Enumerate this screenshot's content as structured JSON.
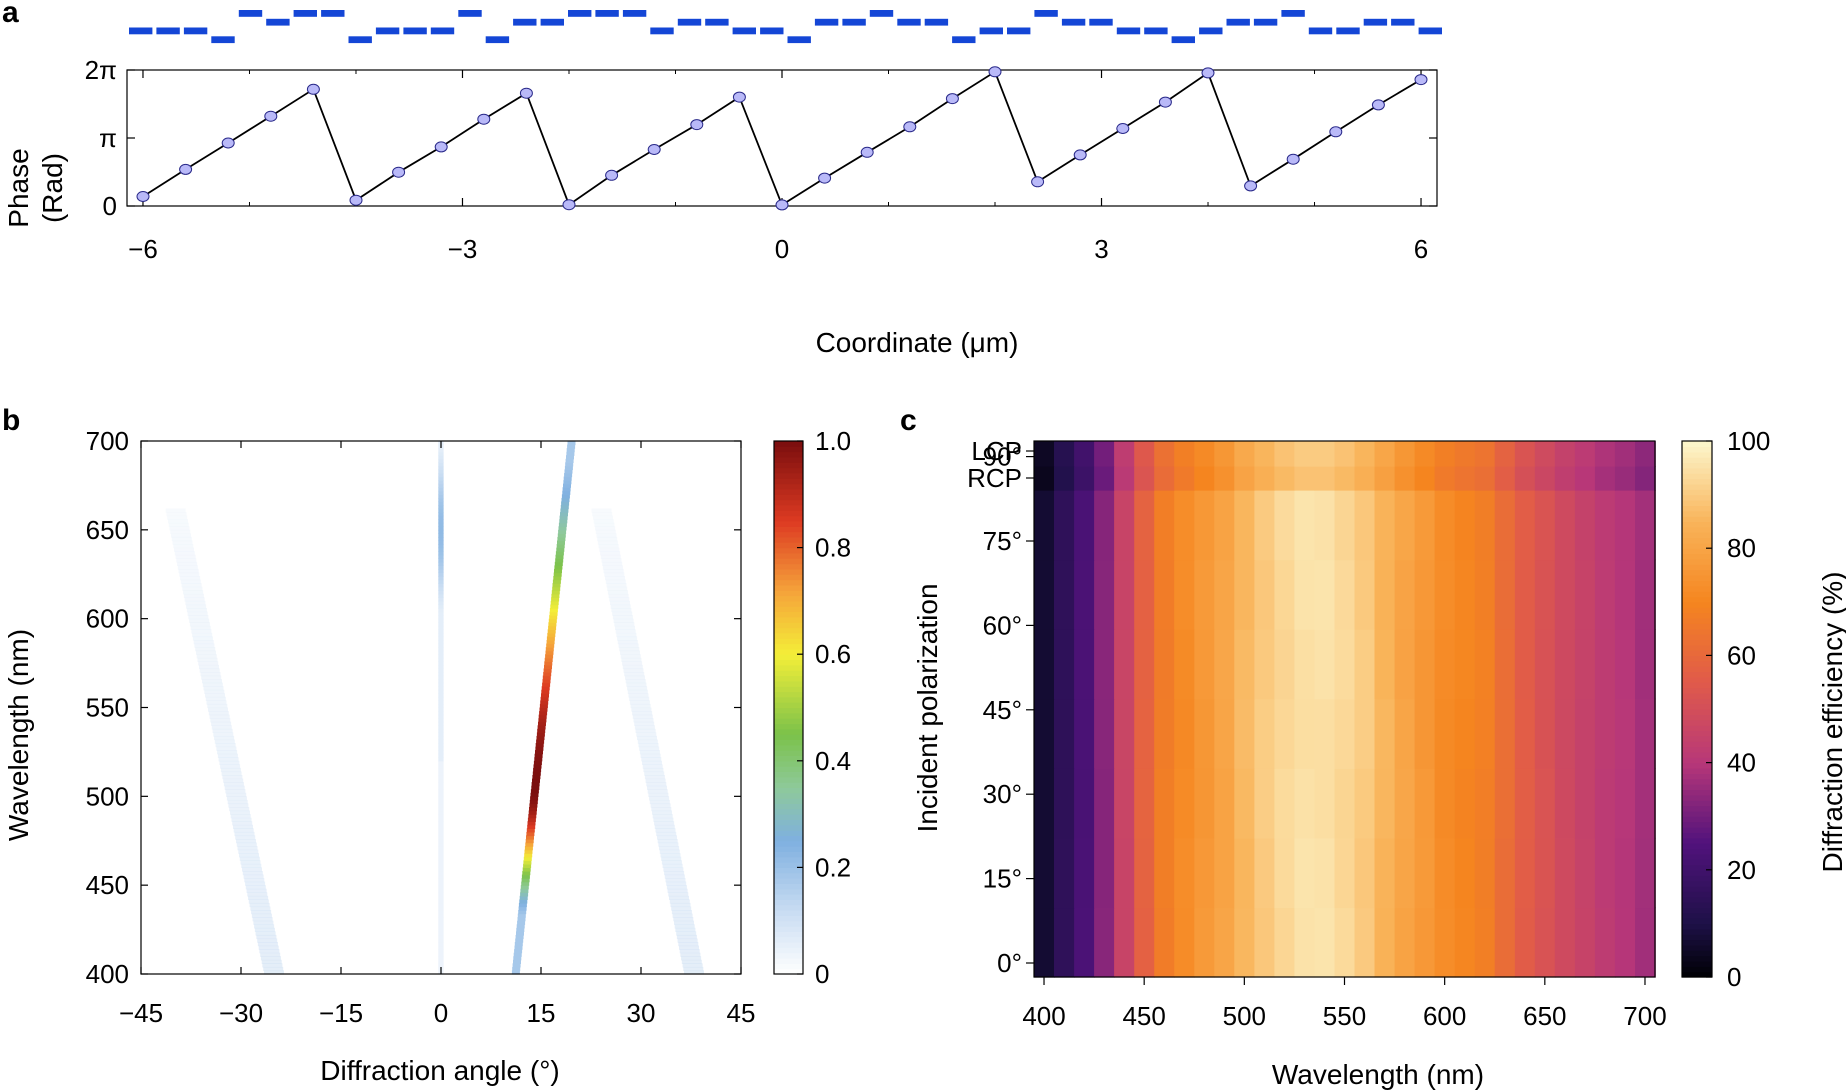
{
  "colors": {
    "metasurface": "#1446d6",
    "point_fill": "#b9b9f8",
    "point_stroke": "#2a2a8a",
    "line": "#000000"
  },
  "chart_data": [
    {
      "panel": "a",
      "type": "line",
      "title": "",
      "xlabel": "Coordinate (μm)",
      "ylabel_lines": [
        "Phase",
        "(Rad)"
      ],
      "xlim": [
        -6.15,
        6.15
      ],
      "ylim": [
        0,
        6.2832
      ],
      "x_ticks": [
        {
          "v": -6,
          "label": "−6"
        },
        {
          "v": -3,
          "label": "−3"
        },
        {
          "v": 0,
          "label": "0"
        },
        {
          "v": 3,
          "label": "3"
        },
        {
          "v": 6,
          "label": "6"
        }
      ],
      "y_ticks": [
        {
          "v": 0,
          "label": "0"
        },
        {
          "v": 3.1416,
          "label": "π"
        },
        {
          "v": 6.2832,
          "label": "2π"
        }
      ],
      "series": [
        {
          "name": "phase profile",
          "x": [
            -6.0,
            -5.6,
            -5.2,
            -4.8,
            -4.4,
            -4.0,
            -3.6,
            -3.2,
            -2.8,
            -2.4,
            -2.0,
            -1.6,
            -1.2,
            -0.8,
            -0.4,
            0.0,
            0.4,
            0.8,
            1.2,
            1.6,
            2.0,
            2.4,
            2.8,
            3.2,
            3.6,
            4.0,
            4.4,
            4.8,
            5.2,
            5.6,
            6.0
          ],
          "y": [
            0.44,
            1.69,
            2.91,
            4.15,
            5.39,
            0.27,
            1.56,
            2.73,
            4.01,
            5.21,
            0.06,
            1.42,
            2.61,
            3.76,
            5.03,
            0.05,
            1.29,
            2.48,
            3.66,
            4.96,
            6.2,
            1.12,
            2.36,
            3.58,
            4.8,
            6.15,
            0.93,
            2.16,
            3.43,
            4.67,
            5.84
          ]
        }
      ],
      "metasurface_top_view": [
        [
          0,
          0,
          1,
          0
        ],
        [
          0,
          0,
          1,
          0
        ],
        [
          0,
          0,
          1,
          0
        ],
        [
          0,
          0,
          0,
          1
        ],
        [
          1,
          0,
          0,
          0
        ],
        [
          0,
          1,
          0,
          0
        ],
        [
          1,
          0,
          0,
          0
        ],
        [
          1,
          0,
          0,
          0
        ],
        [
          0,
          0,
          0,
          1
        ],
        [
          0,
          0,
          1,
          0
        ],
        [
          0,
          0,
          1,
          0
        ],
        [
          0,
          0,
          1,
          0
        ],
        [
          1,
          0,
          0,
          0
        ],
        [
          0,
          0,
          0,
          1
        ],
        [
          0,
          1,
          0,
          0
        ],
        [
          0,
          1,
          0,
          0
        ],
        [
          1,
          0,
          0,
          0
        ],
        [
          1,
          0,
          0,
          0
        ],
        [
          1,
          0,
          0,
          0
        ],
        [
          0,
          0,
          1,
          0
        ],
        [
          0,
          1,
          0,
          0
        ],
        [
          0,
          1,
          0,
          0
        ],
        [
          0,
          0,
          1,
          0
        ],
        [
          0,
          0,
          1,
          0
        ],
        [
          0,
          0,
          0,
          1
        ],
        [
          0,
          1,
          0,
          0
        ],
        [
          0,
          1,
          0,
          0
        ],
        [
          1,
          0,
          0,
          0
        ],
        [
          0,
          1,
          0,
          0
        ],
        [
          0,
          1,
          0,
          0
        ],
        [
          0,
          0,
          0,
          1
        ],
        [
          0,
          0,
          1,
          0
        ],
        [
          0,
          0,
          1,
          0
        ],
        [
          1,
          0,
          0,
          0
        ],
        [
          0,
          1,
          0,
          0
        ],
        [
          0,
          1,
          0,
          0
        ],
        [
          0,
          0,
          1,
          0
        ],
        [
          0,
          0,
          1,
          0
        ],
        [
          0,
          0,
          0,
          1
        ],
        [
          0,
          0,
          1,
          0
        ],
        [
          0,
          1,
          0,
          0
        ],
        [
          0,
          1,
          0,
          0
        ],
        [
          1,
          0,
          0,
          0
        ],
        [
          0,
          0,
          1,
          0
        ],
        [
          0,
          0,
          1,
          0
        ],
        [
          0,
          1,
          0,
          0
        ],
        [
          0,
          1,
          0,
          0
        ],
        [
          0,
          0,
          1,
          0
        ]
      ]
    },
    {
      "panel": "b",
      "type": "heatmap",
      "title": "",
      "xlabel": "Diffraction angle (°)",
      "ylabel": "Wavelength (nm)",
      "xlim": [
        -45,
        45
      ],
      "ylim": [
        400,
        700
      ],
      "x_ticks": [
        {
          "v": -45,
          "label": "−45"
        },
        {
          "v": -30,
          "label": "−30"
        },
        {
          "v": -15,
          "label": "−15"
        },
        {
          "v": 0,
          "label": "0"
        },
        {
          "v": 15,
          "label": "15"
        },
        {
          "v": 30,
          "label": "30"
        },
        {
          "v": 45,
          "label": "45"
        }
      ],
      "y_ticks": [
        400,
        450,
        500,
        550,
        600,
        650,
        700
      ],
      "colorbar": {
        "ticks": [
          {
            "v": 0,
            "label": "0"
          },
          {
            "v": 0.2,
            "label": "0.2"
          },
          {
            "v": 0.4,
            "label": "0.4"
          },
          {
            "v": 0.6,
            "label": "0.6"
          },
          {
            "v": 0.8,
            "label": "0.8"
          },
          {
            "v": 1.0,
            "label": "1.0"
          }
        ],
        "stops": [
          {
            "v": 0.0,
            "color": "#ffffff"
          },
          {
            "v": 0.12,
            "color": "#c8dcf2"
          },
          {
            "v": 0.25,
            "color": "#7fb0e0"
          },
          {
            "v": 0.35,
            "color": "#8ec99a"
          },
          {
            "v": 0.45,
            "color": "#7bc24a"
          },
          {
            "v": 0.6,
            "color": "#f4ee38"
          },
          {
            "v": 0.72,
            "color": "#f5a23a"
          },
          {
            "v": 0.85,
            "color": "#dd3a22"
          },
          {
            "v": 1.0,
            "color": "#7a0e0e"
          }
        ]
      },
      "features": [
        {
          "name": "first order",
          "kind": "ridge",
          "angle_at_400": 11.2,
          "angle_at_700": 19.6,
          "peak_wavelength": 505,
          "peak": 1.0,
          "width_deg": 1.2
        },
        {
          "name": "zeroth order",
          "kind": "ridge",
          "angle_at_400": 0.0,
          "angle_at_700": 0.0,
          "peak_wavelength": 650,
          "peak": 0.22,
          "width_deg": 0.8
        },
        {
          "name": "left lobe",
          "kind": "streak",
          "angle_at_400": -25.0,
          "angle_at_700": -42.0,
          "peak": 0.1,
          "width_deg": 3.0
        },
        {
          "name": "right lobe",
          "kind": "streak",
          "angle_at_400": 38.0,
          "angle_at_700": 22.0,
          "peak": 0.1,
          "width_deg": 3.0
        }
      ]
    },
    {
      "panel": "c",
      "type": "heatmap",
      "title": "",
      "xlabel": "Wavelength (nm)",
      "ylabel": "Incident polarization",
      "xlim": [
        395,
        705
      ],
      "x_ticks": [
        400,
        450,
        500,
        550,
        600,
        650,
        700
      ],
      "x_centers": [
        400,
        410,
        420,
        430,
        440,
        450,
        460,
        470,
        480,
        490,
        500,
        510,
        520,
        530,
        540,
        550,
        560,
        570,
        580,
        590,
        600,
        610,
        620,
        630,
        640,
        650,
        660,
        670,
        680,
        690,
        700
      ],
      "y_ticks": [
        "0°",
        "15°",
        "30°",
        "45°",
        "60°",
        "75°",
        "90°",
        "RCP",
        "LCP"
      ],
      "efficiency_percent": [
        7,
        15,
        23,
        33,
        46,
        58,
        67,
        72,
        76,
        80,
        86,
        90,
        93,
        95,
        95,
        93,
        90,
        85,
        80,
        76,
        72,
        70,
        68,
        62,
        56,
        52,
        48,
        45,
        42,
        40,
        37
      ],
      "colorbar": {
        "label": "Diffraction efficiency (%)",
        "ticks": [
          0,
          20,
          40,
          60,
          80,
          100
        ],
        "stops": [
          {
            "v": 0,
            "color": "#000004"
          },
          {
            "v": 10,
            "color": "#1d1147"
          },
          {
            "v": 25,
            "color": "#51127c"
          },
          {
            "v": 40,
            "color": "#b73779"
          },
          {
            "v": 55,
            "color": "#e05a4a"
          },
          {
            "v": 70,
            "color": "#f5851f"
          },
          {
            "v": 85,
            "color": "#f9b45a"
          },
          {
            "v": 100,
            "color": "#fcf7cd"
          }
        ]
      }
    }
  ],
  "panel_labels": {
    "a": "a",
    "b": "b",
    "c": "c"
  }
}
